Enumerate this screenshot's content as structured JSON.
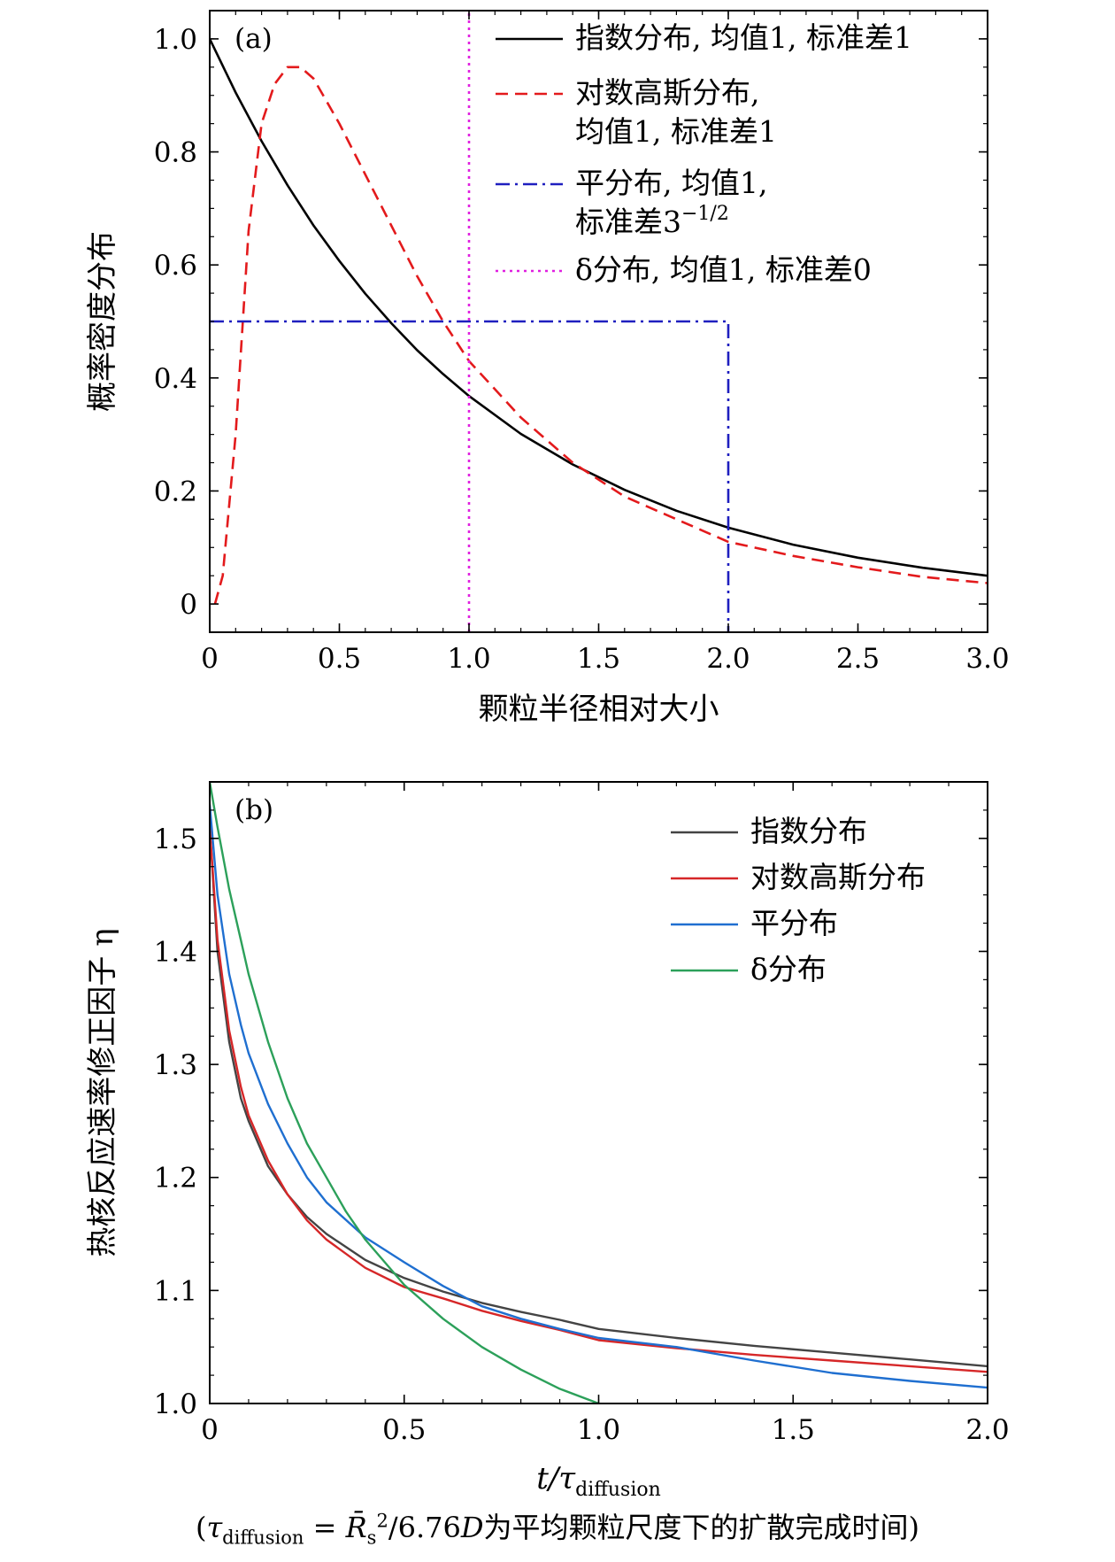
{
  "chart_data": [
    {
      "type": "line",
      "panel_label": "(a)",
      "xlabel": "颗粒半径相对大小",
      "ylabel": "概率密度分布",
      "xlim": [
        0,
        3.0
      ],
      "ylim": [
        -0.05,
        1.05
      ],
      "xticks": [
        0,
        0.5,
        1.0,
        1.5,
        2.0,
        2.5,
        3.0
      ],
      "xtick_labels": [
        "0",
        "0.5",
        "1.0",
        "1.5",
        "2.0",
        "2.5",
        "3.0"
      ],
      "yticks": [
        0,
        0.2,
        0.4,
        0.6,
        0.8,
        1.0
      ],
      "ytick_labels": [
        "0",
        "0.2",
        "0.4",
        "0.6",
        "0.8",
        "1.0"
      ],
      "legend_position": "top-right",
      "series": [
        {
          "name": "指数分布, 均值1, 标准差1",
          "legend_lines": [
            "指数分布, 均值1, 标准差1"
          ],
          "color": "#000000",
          "style": "solid",
          "x": [
            0,
            0.1,
            0.2,
            0.3,
            0.4,
            0.5,
            0.6,
            0.7,
            0.8,
            0.9,
            1.0,
            1.2,
            1.4,
            1.6,
            1.8,
            2.0,
            2.25,
            2.5,
            2.75,
            3.0
          ],
          "y": [
            1.0,
            0.905,
            0.819,
            0.741,
            0.67,
            0.607,
            0.549,
            0.497,
            0.449,
            0.407,
            0.368,
            0.301,
            0.247,
            0.202,
            0.165,
            0.135,
            0.105,
            0.082,
            0.064,
            0.05
          ]
        },
        {
          "name": "对数高斯分布, 均值1, 标准差1",
          "legend_lines": [
            "对数高斯分布,",
            "均值1, 标准差1"
          ],
          "color": "#e31a1c",
          "style": "dashed",
          "x": [
            0.02,
            0.05,
            0.1,
            0.15,
            0.2,
            0.25,
            0.3,
            0.35,
            0.4,
            0.45,
            0.5,
            0.6,
            0.7,
            0.8,
            0.9,
            1.0,
            1.2,
            1.4,
            1.6,
            1.8,
            2.0,
            2.25,
            2.5,
            2.75,
            3.0
          ],
          "y": [
            0.0,
            0.05,
            0.3,
            0.66,
            0.85,
            0.92,
            0.95,
            0.95,
            0.93,
            0.89,
            0.85,
            0.76,
            0.67,
            0.58,
            0.5,
            0.43,
            0.33,
            0.25,
            0.19,
            0.15,
            0.11,
            0.085,
            0.065,
            0.048,
            0.037
          ]
        },
        {
          "name": "平分布, 均值1, 标准差3^(-1/2)",
          "legend_lines": [
            "平分布, 均值1,",
            "标准差3"
          ],
          "legend_sup": "−1/2",
          "color": "#1f1fbf",
          "style": "dashdot",
          "x": [
            0,
            2.0,
            2.0
          ],
          "y": [
            0.5,
            0.5,
            -0.05
          ]
        },
        {
          "name": "δ分布, 均值1, 标准差0",
          "legend_lines": [
            "δ分布, 均值1, 标准差0"
          ],
          "color": "#e020e0",
          "style": "dotted",
          "x": [
            1.0,
            1.0
          ],
          "y": [
            -0.05,
            1.05
          ]
        }
      ]
    },
    {
      "type": "line",
      "panel_label": "(b)",
      "xlabel": "t/τ",
      "xlabel_sub": "diffusion",
      "ylabel": "热核反应速率修正因子 η",
      "xlim": [
        0,
        2.0
      ],
      "ylim": [
        1.0,
        1.55
      ],
      "xticks": [
        0,
        0.5,
        1.0,
        1.5,
        2.0
      ],
      "xtick_labels": [
        "0",
        "0.5",
        "1.0",
        "1.5",
        "2.0"
      ],
      "yticks": [
        1.0,
        1.1,
        1.2,
        1.3,
        1.4,
        1.5
      ],
      "ytick_labels": [
        "1.0",
        "1.1",
        "1.2",
        "1.3",
        "1.4",
        "1.5"
      ],
      "legend_position": "top-right",
      "series": [
        {
          "name": "指数分布",
          "color": "#444444",
          "x": [
            0.0,
            0.02,
            0.05,
            0.08,
            0.1,
            0.15,
            0.2,
            0.25,
            0.3,
            0.4,
            0.5,
            0.6,
            0.7,
            0.8,
            0.9,
            1.0,
            1.2,
            1.4,
            1.6,
            1.8,
            2.0
          ],
          "y": [
            1.51,
            1.4,
            1.32,
            1.27,
            1.25,
            1.21,
            1.185,
            1.165,
            1.15,
            1.127,
            1.111,
            1.099,
            1.089,
            1.081,
            1.074,
            1.066,
            1.058,
            1.051,
            1.045,
            1.039,
            1.033
          ]
        },
        {
          "name": "对数高斯分布",
          "color": "#d62728",
          "x": [
            0.0,
            0.02,
            0.05,
            0.08,
            0.1,
            0.15,
            0.2,
            0.25,
            0.3,
            0.4,
            0.5,
            0.6,
            0.7,
            0.8,
            0.9,
            1.0,
            1.2,
            1.4,
            1.6,
            1.8,
            2.0
          ],
          "y": [
            1.51,
            1.41,
            1.33,
            1.28,
            1.255,
            1.215,
            1.185,
            1.162,
            1.145,
            1.12,
            1.103,
            1.093,
            1.082,
            1.073,
            1.065,
            1.056,
            1.049,
            1.043,
            1.038,
            1.033,
            1.028
          ]
        },
        {
          "name": "平分布",
          "color": "#1f6fd0",
          "x": [
            0.0,
            0.02,
            0.05,
            0.08,
            0.1,
            0.15,
            0.2,
            0.25,
            0.3,
            0.4,
            0.5,
            0.6,
            0.7,
            0.8,
            0.9,
            1.0,
            1.2,
            1.4,
            1.6,
            1.8,
            2.0
          ],
          "y": [
            1.53,
            1.45,
            1.38,
            1.335,
            1.31,
            1.265,
            1.23,
            1.2,
            1.178,
            1.147,
            1.125,
            1.104,
            1.086,
            1.075,
            1.066,
            1.058,
            1.05,
            1.038,
            1.027,
            1.02,
            1.014
          ]
        },
        {
          "name": "δ分布",
          "color": "#2ca05a",
          "x": [
            0.0,
            0.02,
            0.05,
            0.08,
            0.1,
            0.15,
            0.2,
            0.25,
            0.3,
            0.35,
            0.4,
            0.5,
            0.6,
            0.7,
            0.8,
            0.9,
            1.0
          ],
          "y": [
            1.55,
            1.51,
            1.455,
            1.41,
            1.38,
            1.32,
            1.27,
            1.23,
            1.2,
            1.17,
            1.145,
            1.105,
            1.075,
            1.05,
            1.03,
            1.013,
            1.0
          ]
        }
      ]
    }
  ],
  "caption": {
    "text": "(τ_diffusion = R̄_s²/6.76D为平均颗粒尺度下的扩散完成时间)",
    "open": "(",
    "tau": "τ",
    "sub": "diffusion",
    "eq": " = ",
    "R": "R̄",
    "R_sub": "s",
    "R_sup": "2",
    "rest": "/6.76",
    "D": "D",
    "cn": "为平均颗粒尺度下的扩散完成时间)"
  }
}
